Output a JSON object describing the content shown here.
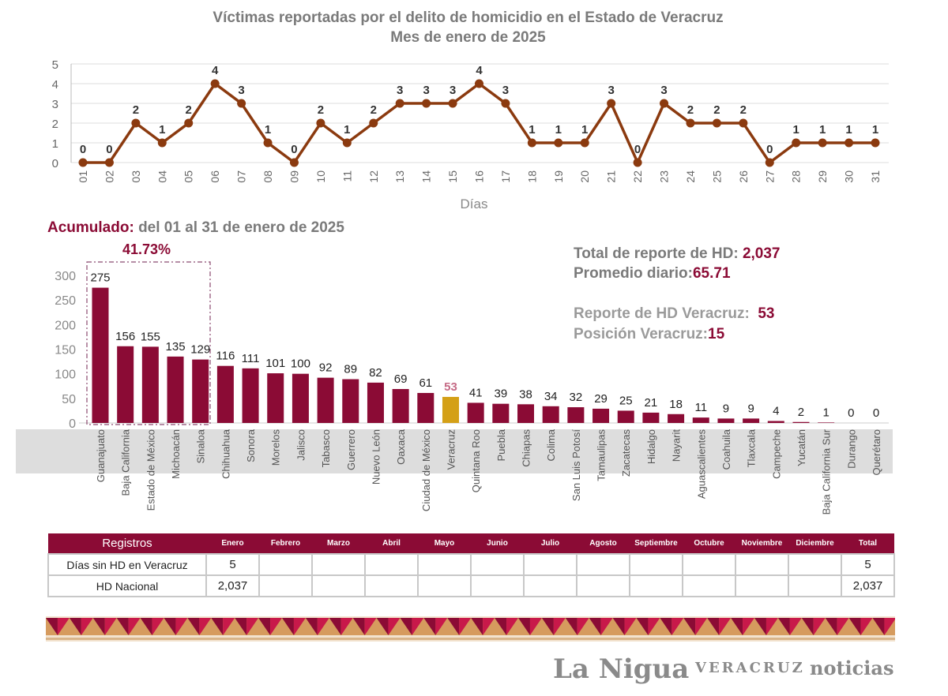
{
  "title_line1": "Víctimas reportadas por el delito de homicidio en el Estado de Veracruz",
  "title_line2": "Mes de enero de 2025",
  "colors": {
    "primary": "#8b0b35",
    "light": "#c56a85",
    "highlight": "#d4a017",
    "line": "#8b3a0f",
    "gray": "#7a7a7a"
  },
  "chart_data": [
    {
      "type": "line",
      "xlabel": "Días",
      "ylim": [
        0,
        5
      ],
      "yticks": [
        0,
        1,
        2,
        3,
        4,
        5
      ],
      "grid": true,
      "x": [
        "01",
        "02",
        "03",
        "04",
        "05",
        "06",
        "07",
        "08",
        "09",
        "10",
        "11",
        "12",
        "13",
        "14",
        "15",
        "16",
        "17",
        "18",
        "19",
        "20",
        "21",
        "22",
        "23",
        "24",
        "25",
        "26",
        "27",
        "28",
        "29",
        "30",
        "31"
      ],
      "values": [
        0,
        0,
        2,
        1,
        2,
        4,
        3,
        1,
        0,
        2,
        1,
        2,
        3,
        3,
        3,
        4,
        3,
        1,
        1,
        1,
        3,
        0,
        3,
        2,
        2,
        2,
        0,
        1,
        1,
        1,
        1
      ]
    },
    {
      "type": "bar",
      "ylim": [
        0,
        300
      ],
      "yticks": [
        0,
        50,
        100,
        150,
        200,
        250,
        300
      ],
      "categories": [
        "Guanajuato",
        "Baja California",
        "Estado de México",
        "Michoacán",
        "Sinaloa",
        "Chihuahua",
        "Sonora",
        "Morelos",
        "Jalisco",
        "Tabasco",
        "Guerrero",
        "Nuevo León",
        "Oaxaca",
        "Ciudad de México",
        "Veracruz",
        "Quintana Roo",
        "Puebla",
        "Chiapas",
        "Colima",
        "San Luis Potosí",
        "Tamaulipas",
        "Zacatecas",
        "Hidalgo",
        "Nayarit",
        "Aguascalientes",
        "Coahuila",
        "Tlaxcala",
        "Campeche",
        "Yucatán",
        "Baja California Sur",
        "Durango",
        "Querétaro"
      ],
      "values": [
        275,
        156,
        155,
        135,
        129,
        116,
        111,
        101,
        100,
        92,
        89,
        82,
        69,
        61,
        53,
        41,
        39,
        38,
        34,
        32,
        29,
        25,
        21,
        18,
        11,
        9,
        9,
        4,
        2,
        1,
        0,
        0
      ],
      "highlight": "Veracruz",
      "top5_share": "41.73%"
    }
  ],
  "accumulated": {
    "label": "Acumulado:",
    "range": "del 01 al 31 de enero de 2025",
    "top_share": "41.73%"
  },
  "stats": {
    "total_label": "Total de reporte de HD:",
    "total_value": "2,037",
    "avg_label": "Promedio diario:",
    "avg_value": "65.71",
    "ver_label": "Reporte de HD Veracruz:",
    "ver_value": "53",
    "pos_label": "Posición Veracruz:",
    "pos_value": "15"
  },
  "table": {
    "headers": [
      "Registros",
      "Enero",
      "Febrero",
      "Marzo",
      "Abril",
      "Mayo",
      "Junio",
      "Julio",
      "Agosto",
      "Septiembre",
      "Octubre",
      "Noviembre",
      "Diciembre",
      "Total"
    ],
    "rows": [
      [
        "Días sin HD en Veracruz",
        "5",
        "",
        "",
        "",
        "",
        "",
        "",
        "",
        "",
        "",
        "",
        "",
        "5"
      ],
      [
        "HD Nacional",
        "2,037",
        "",
        "",
        "",
        "",
        "",
        "",
        "",
        "",
        "",
        "",
        "",
        "2,037"
      ]
    ]
  },
  "watermark": {
    "brand": "La Nigua",
    "sub_left": "VERACRUZ",
    "sub_right": "noticias"
  }
}
